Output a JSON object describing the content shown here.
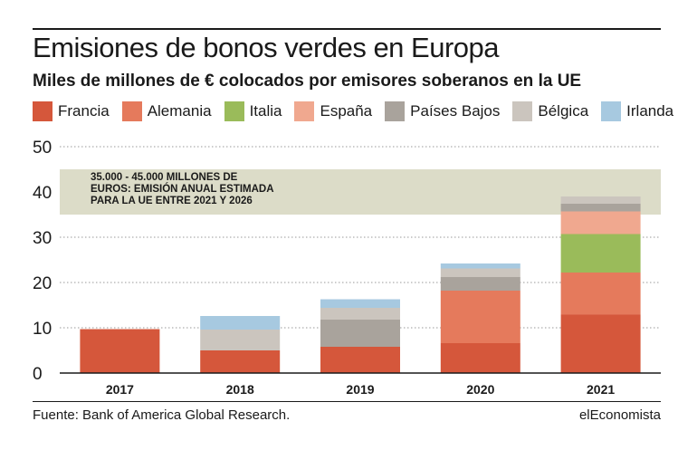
{
  "title": "Emisiones de bonos verdes en Europa",
  "subtitle": "Miles de millones de € colocados por emisores soberanos en la UE",
  "source": "Fuente: Bank of America Global Research.",
  "brand": "elEconomista",
  "chart_data": {
    "type": "bar",
    "stacked": true,
    "categories": [
      "2017",
      "2018",
      "2019",
      "2020",
      "2021"
    ],
    "ylim": [
      0,
      50
    ],
    "yticks": [
      0,
      10,
      20,
      30,
      40,
      50
    ],
    "grid": true,
    "legend_position": "top",
    "series": [
      {
        "name": "Francia",
        "color": "#d5573b",
        "values": [
          9.7,
          5.0,
          5.8,
          6.6,
          12.9
        ]
      },
      {
        "name": "Alemania",
        "color": "#e57a5c",
        "values": [
          0,
          0,
          0,
          11.6,
          9.3
        ]
      },
      {
        "name": "Italia",
        "color": "#9abb5a",
        "values": [
          0,
          0,
          0,
          0,
          8.5
        ]
      },
      {
        "name": "España",
        "color": "#f0a88f",
        "values": [
          0,
          0,
          0,
          0,
          5.0
        ]
      },
      {
        "name": "Países Bajos",
        "color": "#a9a39c",
        "values": [
          0,
          0,
          6.0,
          3.0,
          1.7
        ]
      },
      {
        "name": "Bélgica",
        "color": "#cbc5be",
        "values": [
          0,
          4.6,
          2.6,
          1.9,
          1.6
        ]
      },
      {
        "name": "Irlanda",
        "color": "#a7c9e0",
        "values": [
          0,
          3.0,
          1.9,
          1.1,
          0
        ]
      }
    ],
    "band": {
      "range": [
        35,
        45
      ],
      "color": "#dcdcc8",
      "label_lines": [
        "35.000 - 45.000 MILLONES DE",
        "EUROS: EMISIÓN ANUAL ESTIMADA",
        "PARA LA UE ENTRE 2021 Y 2026"
      ]
    }
  }
}
